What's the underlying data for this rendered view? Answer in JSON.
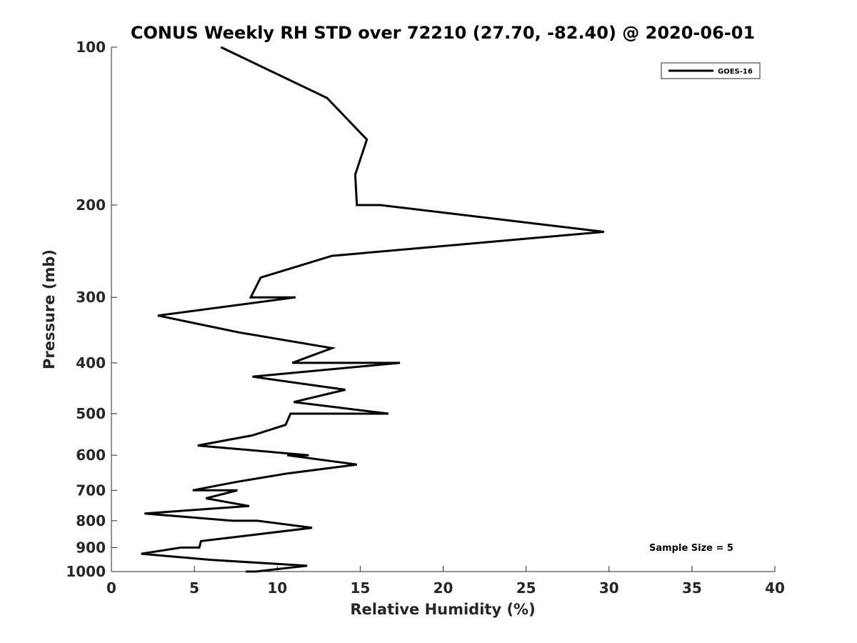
{
  "chart_data": {
    "type": "line",
    "title": "CONUS Weekly RH STD over 72210 (27.70, -82.40) @ 2020-06-01",
    "xlabel": "Relative Humidity (%)",
    "ylabel": "Pressure (mb)",
    "xlim": [
      0,
      40
    ],
    "ylim": [
      100,
      1000
    ],
    "y_scale": "log",
    "y_reversed": true,
    "grid": false,
    "x_ticks": [
      0,
      5,
      10,
      15,
      20,
      25,
      30,
      35,
      40
    ],
    "y_ticks": [
      100,
      200,
      300,
      400,
      500,
      600,
      700,
      800,
      900,
      1000
    ],
    "legend_position": "top-right",
    "annotation": "Sample Size = 5",
    "series": [
      {
        "name": "GOES-16",
        "color": "#000000",
        "x": [
          6.6,
          13.0,
          15.4,
          14.7,
          14.8,
          16.2,
          29.7,
          13.3,
          9.0,
          8.4,
          11.1,
          2.8,
          7.7,
          13.3,
          10.9,
          17.4,
          8.5,
          14.1,
          11.0,
          16.7,
          10.8,
          10.5,
          8.5,
          5.2,
          11.9,
          10.6,
          14.8,
          10.6,
          7.5,
          4.9,
          7.6,
          5.7,
          8.3,
          2.0,
          7.3,
          8.8,
          12.1,
          8.7,
          5.4,
          5.3,
          4.2,
          1.8,
          6.0,
          11.8,
          8.7,
          8.5,
          8.1
        ],
        "y": [
          100,
          125,
          150,
          175,
          200,
          200,
          225,
          250,
          275,
          300,
          300,
          325,
          350,
          375,
          400,
          400,
          425,
          450,
          475,
          500,
          500,
          525,
          550,
          575,
          600,
          600,
          625,
          650,
          675,
          700,
          700,
          725,
          750,
          775,
          800,
          800,
          825,
          850,
          875,
          900,
          900,
          925,
          950,
          975,
          1000,
          1000,
          1000
        ]
      }
    ]
  }
}
